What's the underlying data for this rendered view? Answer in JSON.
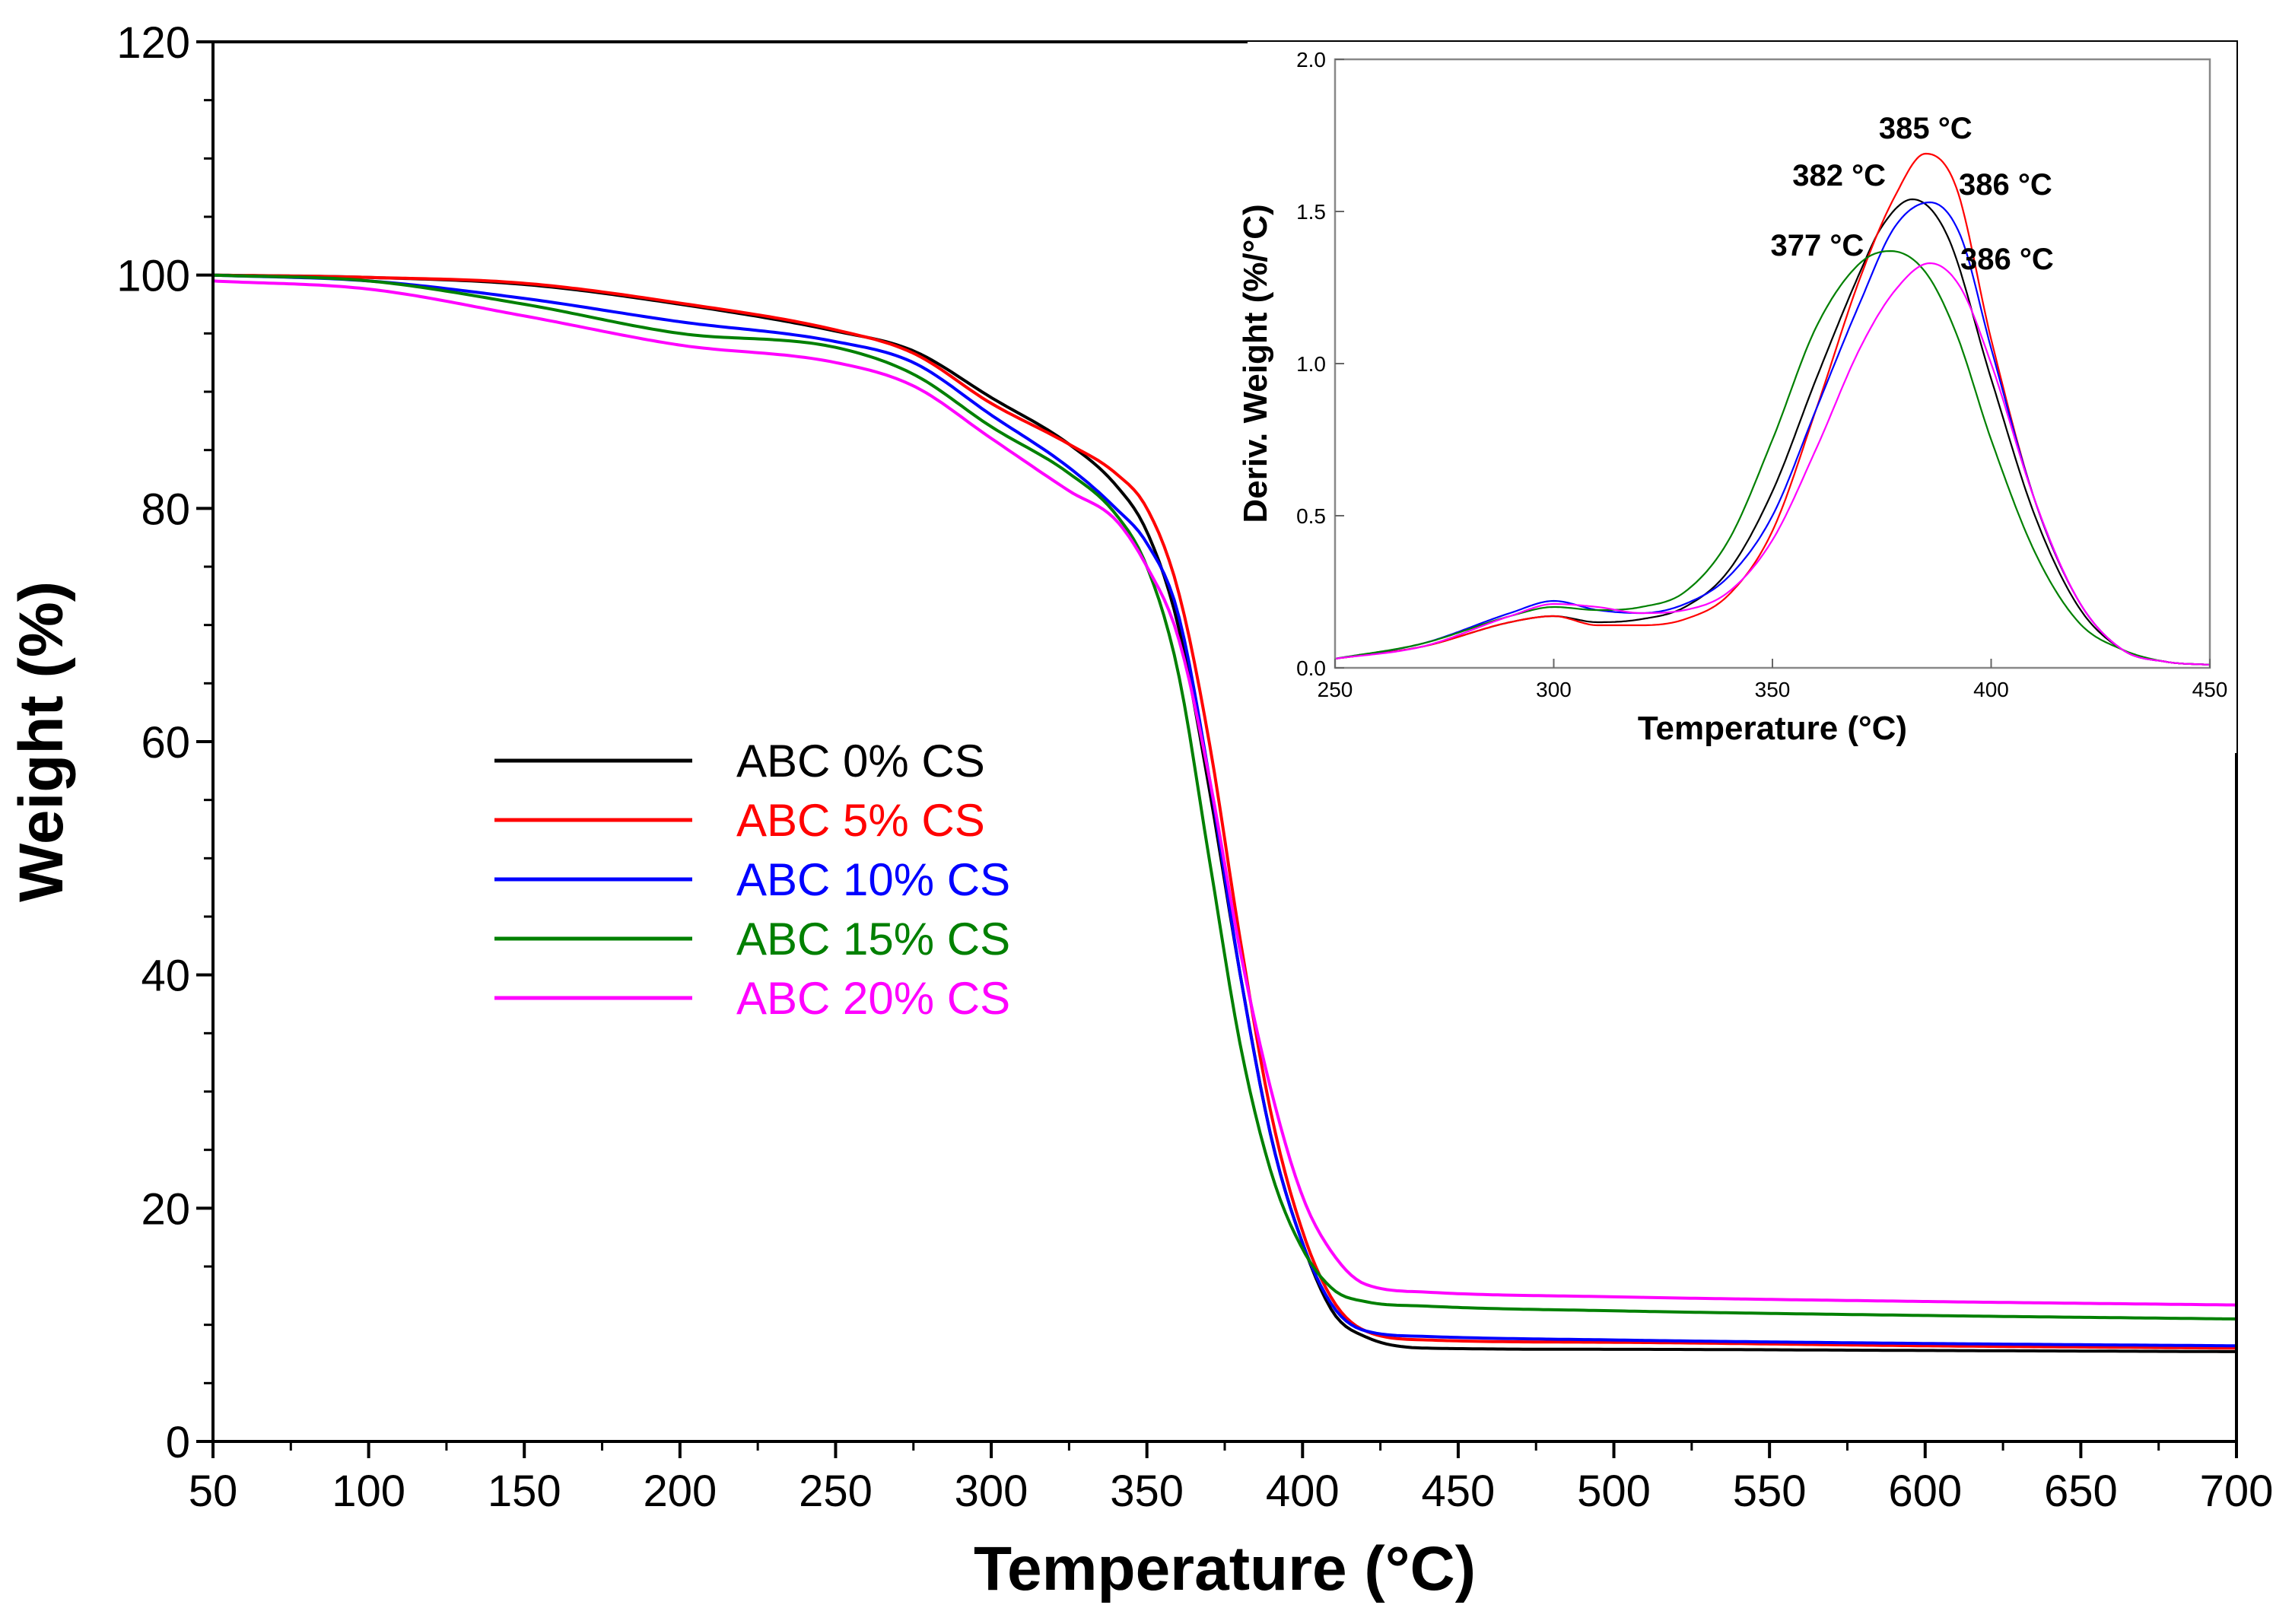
{
  "chart_data": [
    {
      "type": "line",
      "title": "",
      "xlabel": "Temperature (°C)",
      "ylabel": "Weight (%)",
      "xlim": [
        50,
        700
      ],
      "ylim": [
        0,
        120
      ],
      "xticks": [
        50,
        100,
        150,
        200,
        250,
        300,
        350,
        400,
        450,
        500,
        550,
        600,
        650,
        700
      ],
      "yticks": [
        0,
        20,
        40,
        60,
        80,
        100,
        120
      ],
      "legend": "center-left",
      "series": [
        {
          "name": "ABC 0% CS",
          "color": "#000000",
          "x": [
            50,
            100,
            150,
            200,
            250,
            275,
            300,
            325,
            340,
            350,
            360,
            370,
            380,
            390,
            400,
            410,
            420,
            440,
            500,
            600,
            700
          ],
          "y": [
            100,
            99.8,
            99.2,
            97.5,
            95.2,
            93.5,
            89.5,
            85.5,
            82,
            78,
            70,
            56,
            40,
            26,
            17,
            11,
            9,
            8,
            7.9,
            7.8,
            7.7
          ]
        },
        {
          "name": "ABC 5% CS",
          "color": "#ff0000",
          "x": [
            50,
            100,
            150,
            200,
            250,
            275,
            300,
            325,
            340,
            350,
            360,
            370,
            380,
            390,
            400,
            410,
            420,
            440,
            500,
            600,
            700
          ],
          "y": [
            100,
            99.8,
            99.3,
            97.6,
            95.3,
            93.3,
            89,
            85.5,
            83,
            80,
            73,
            60,
            43,
            28,
            18,
            12,
            9.5,
            8.7,
            8.5,
            8.2,
            8.0
          ]
        },
        {
          "name": "ABC 10% CS",
          "color": "#0000ff",
          "x": [
            50,
            100,
            150,
            200,
            250,
            275,
            300,
            325,
            340,
            350,
            360,
            370,
            380,
            390,
            400,
            410,
            420,
            440,
            500,
            600,
            700
          ],
          "y": [
            100,
            99.5,
            98,
            96,
            94.3,
            92.5,
            88,
            83.5,
            80,
            77,
            71,
            57,
            40,
            26,
            17,
            11.5,
            9.5,
            9,
            8.7,
            8.4,
            8.2
          ]
        },
        {
          "name": "ABC 15% CS",
          "color": "#008000",
          "x": [
            50,
            100,
            150,
            200,
            250,
            275,
            300,
            325,
            340,
            350,
            360,
            370,
            380,
            390,
            400,
            410,
            420,
            440,
            500,
            600,
            700
          ],
          "y": [
            100,
            99.5,
            97.5,
            95,
            93.8,
            91.5,
            87,
            83,
            79.5,
            75,
            66,
            50,
            34,
            23,
            16.5,
            13,
            12,
            11.6,
            11.2,
            10.8,
            10.5
          ]
        },
        {
          "name": "ABC 20% CS",
          "color": "#ff00ff",
          "x": [
            50,
            100,
            150,
            200,
            250,
            275,
            300,
            325,
            340,
            350,
            360,
            370,
            380,
            390,
            400,
            410,
            420,
            440,
            500,
            600,
            700
          ],
          "y": [
            99.5,
            98.8,
            96.5,
            94,
            92.5,
            90.5,
            86,
            81.5,
            79,
            75,
            69,
            57,
            42,
            30,
            21,
            16,
            13.5,
            12.8,
            12.4,
            12,
            11.7
          ]
        }
      ]
    },
    {
      "type": "line",
      "title": "",
      "xlabel": "Temperature (°C)",
      "ylabel": "Deriv. Weight (%/°C)",
      "xlim": [
        250,
        450
      ],
      "ylim": [
        0,
        2.0
      ],
      "xticks": [
        250,
        300,
        350,
        400,
        450
      ],
      "yticks": [
        0.0,
        0.5,
        1.0,
        1.5,
        2.0
      ],
      "ytick_labels": [
        "0.0",
        "0.5",
        "1.0",
        "1.5",
        "2.0"
      ],
      "legend": "none",
      "series": [
        {
          "name": "ABC 0% CS",
          "color": "#000000",
          "x": [
            250,
            270,
            290,
            300,
            310,
            320,
            330,
            340,
            350,
            360,
            370,
            375,
            382,
            390,
            400,
            410,
            420,
            430,
            440,
            450
          ],
          "y": [
            0.03,
            0.07,
            0.15,
            0.17,
            0.15,
            0.16,
            0.2,
            0.32,
            0.58,
            0.95,
            1.3,
            1.45,
            1.54,
            1.42,
            0.95,
            0.5,
            0.2,
            0.06,
            0.02,
            0.01
          ]
        },
        {
          "name": "ABC 5% CS",
          "color": "#ff0000",
          "x": [
            250,
            270,
            290,
            300,
            310,
            320,
            330,
            340,
            350,
            360,
            370,
            378,
            385,
            392,
            400,
            410,
            420,
            430,
            440,
            450
          ],
          "y": [
            0.03,
            0.07,
            0.15,
            0.17,
            0.14,
            0.14,
            0.16,
            0.24,
            0.45,
            0.85,
            1.28,
            1.55,
            1.69,
            1.58,
            1.08,
            0.55,
            0.22,
            0.06,
            0.02,
            0.01
          ]
        },
        {
          "name": "ABC 10% CS",
          "color": "#0000ff",
          "x": [
            250,
            270,
            290,
            300,
            310,
            320,
            330,
            340,
            350,
            360,
            370,
            378,
            386,
            393,
            400,
            410,
            420,
            430,
            440,
            450
          ],
          "y": [
            0.03,
            0.08,
            0.18,
            0.22,
            0.19,
            0.18,
            0.21,
            0.3,
            0.5,
            0.85,
            1.2,
            1.45,
            1.53,
            1.42,
            1.05,
            0.55,
            0.22,
            0.06,
            0.02,
            0.01
          ]
        },
        {
          "name": "ABC 15% CS",
          "color": "#008000",
          "x": [
            250,
            270,
            290,
            300,
            310,
            320,
            330,
            340,
            350,
            360,
            370,
            377,
            385,
            392,
            400,
            410,
            420,
            430,
            440,
            450
          ],
          "y": [
            0.03,
            0.08,
            0.17,
            0.2,
            0.19,
            0.2,
            0.25,
            0.42,
            0.75,
            1.12,
            1.33,
            1.37,
            1.3,
            1.1,
            0.75,
            0.38,
            0.15,
            0.06,
            0.02,
            0.01
          ]
        },
        {
          "name": "ABC 20% CS",
          "color": "#ff00ff",
          "x": [
            250,
            270,
            290,
            300,
            310,
            320,
            330,
            340,
            350,
            360,
            370,
            378,
            386,
            393,
            400,
            410,
            420,
            430,
            440,
            450
          ],
          "y": [
            0.03,
            0.07,
            0.17,
            0.21,
            0.2,
            0.18,
            0.19,
            0.25,
            0.42,
            0.72,
            1.05,
            1.24,
            1.33,
            1.25,
            1.0,
            0.55,
            0.22,
            0.06,
            0.02,
            0.01
          ]
        }
      ],
      "annotations": [
        {
          "text": "385 °C",
          "x": 385,
          "y": 1.69
        },
        {
          "text": "382 °C",
          "x": 382,
          "y": 1.54
        },
        {
          "text": "386 °C",
          "x": 386,
          "y": 1.53
        },
        {
          "text": "377 °C",
          "x": 377,
          "y": 1.37
        },
        {
          "text": "386 °C",
          "x": 386,
          "y": 1.33
        }
      ]
    }
  ]
}
